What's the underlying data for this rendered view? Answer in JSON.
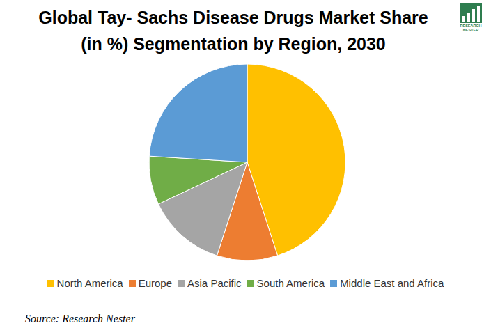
{
  "chart_data": {
    "type": "pie",
    "title": "Global Tay- Sachs Disease Drugs Market Share (in %) Segmentation by Region, 2030",
    "categories": [
      "North America",
      "Europe",
      "Asia Pacific",
      "South America",
      "Middle East and Africa"
    ],
    "values": [
      45,
      10,
      13,
      8,
      24
    ],
    "colors": [
      "#ffc000",
      "#ed7d31",
      "#a5a5a5",
      "#70ad47",
      "#5b9bd5"
    ],
    "legend": "bottom",
    "source": "Source: Research Nester",
    "logo": "RESEARCH NESTER"
  }
}
